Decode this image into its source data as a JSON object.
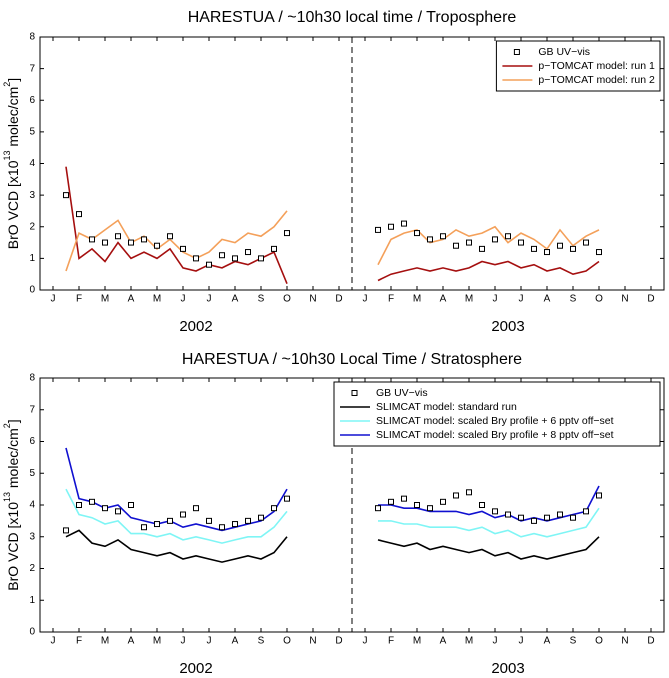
{
  "chart_data": [
    {
      "type": "line",
      "title": "HARESTUA / ~10h30 local time / Troposphere",
      "ylabel_parts": [
        "BrO VCD [x10",
        "13",
        " molec/cm",
        "2",
        "]"
      ],
      "xlim": [
        0,
        24
      ],
      "ylim": [
        0,
        8
      ],
      "yticks": [
        0,
        1,
        2,
        3,
        4,
        5,
        6,
        7,
        8
      ],
      "xticks": [
        {
          "value": 0.5,
          "label": "J"
        },
        {
          "value": 1.5,
          "label": "F"
        },
        {
          "value": 2.5,
          "label": "M"
        },
        {
          "value": 3.5,
          "label": "A"
        },
        {
          "value": 4.5,
          "label": "M"
        },
        {
          "value": 5.5,
          "label": "J"
        },
        {
          "value": 6.5,
          "label": "J"
        },
        {
          "value": 7.5,
          "label": "A"
        },
        {
          "value": 8.5,
          "label": "S"
        },
        {
          "value": 9.5,
          "label": "O"
        },
        {
          "value": 10.5,
          "label": "N"
        },
        {
          "value": 11.5,
          "label": "D"
        },
        {
          "value": 12.5,
          "label": "J"
        },
        {
          "value": 13.5,
          "label": "F"
        },
        {
          "value": 14.5,
          "label": "M"
        },
        {
          "value": 15.5,
          "label": "A"
        },
        {
          "value": 16.5,
          "label": "M"
        },
        {
          "value": 17.5,
          "label": "J"
        },
        {
          "value": 18.5,
          "label": "J"
        },
        {
          "value": 19.5,
          "label": "A"
        },
        {
          "value": 20.5,
          "label": "S"
        },
        {
          "value": 21.5,
          "label": "O"
        },
        {
          "value": 22.5,
          "label": "N"
        },
        {
          "value": 23.5,
          "label": "D"
        }
      ],
      "x_group_labels": [
        {
          "value": 6,
          "label": "2002"
        },
        {
          "value": 18,
          "label": "2003"
        }
      ],
      "divider": 12,
      "legend": "upper right",
      "x": [
        1.0,
        1.5,
        2.0,
        2.5,
        3.0,
        3.5,
        4.0,
        4.5,
        5.0,
        5.5,
        6.0,
        6.5,
        7.0,
        7.5,
        8.0,
        8.5,
        9.0,
        9.5,
        11,
        13.0,
        13.5,
        14.0,
        14.5,
        15.0,
        15.5,
        16.0,
        16.5,
        17.0,
        17.5,
        18.0,
        18.5,
        19.0,
        19.5,
        20.0,
        20.5,
        21.0,
        21.5
      ],
      "series": [
        {
          "name": "GB UV−vis",
          "mark": "square",
          "color": "#000000",
          "values": [
            3.0,
            2.4,
            1.6,
            1.5,
            1.7,
            1.5,
            1.6,
            1.4,
            1.7,
            1.3,
            1.0,
            0.8,
            1.1,
            1.0,
            1.2,
            1.0,
            1.3,
            1.8,
            null,
            1.9,
            2.0,
            2.1,
            1.8,
            1.6,
            1.7,
            1.4,
            1.5,
            1.3,
            1.6,
            1.7,
            1.5,
            1.3,
            1.2,
            1.4,
            1.3,
            1.5,
            1.2
          ]
        },
        {
          "name": "p−TOMCAT model: run 1",
          "mark": "line",
          "color": "#a50f0f",
          "values": [
            3.9,
            1.0,
            1.3,
            0.9,
            1.5,
            1.0,
            1.2,
            1.0,
            1.3,
            0.7,
            0.6,
            0.8,
            0.7,
            0.9,
            0.8,
            1.0,
            1.2,
            0.2,
            null,
            0.3,
            0.5,
            0.6,
            0.7,
            0.6,
            0.7,
            0.6,
            0.7,
            0.9,
            0.8,
            0.9,
            0.7,
            0.8,
            0.6,
            0.7,
            0.5,
            0.6,
            0.9
          ]
        },
        {
          "name": "p−TOMCAT model: run 2",
          "mark": "line",
          "color": "#f4a05a",
          "values": [
            0.6,
            1.8,
            1.6,
            1.9,
            2.2,
            1.5,
            1.7,
            1.3,
            1.6,
            1.2,
            1.0,
            1.2,
            1.6,
            1.5,
            1.8,
            1.7,
            2.0,
            2.5,
            null,
            0.8,
            1.6,
            1.8,
            1.9,
            1.5,
            1.6,
            1.9,
            1.7,
            1.8,
            2.0,
            1.5,
            1.8,
            1.6,
            1.3,
            1.9,
            1.4,
            1.7,
            1.9
          ]
        }
      ]
    },
    {
      "type": "line",
      "title": "HARESTUA / ~10h30 Local Time / Stratosphere",
      "ylabel_parts": [
        "BrO VCD [x10",
        "13",
        " molec/cm",
        "2",
        "]"
      ],
      "xlim": [
        0,
        24
      ],
      "ylim": [
        0,
        8
      ],
      "yticks": [
        0,
        1,
        2,
        3,
        4,
        5,
        6,
        7,
        8
      ],
      "xticks": [
        {
          "value": 0.5,
          "label": "J"
        },
        {
          "value": 1.5,
          "label": "F"
        },
        {
          "value": 2.5,
          "label": "M"
        },
        {
          "value": 3.5,
          "label": "A"
        },
        {
          "value": 4.5,
          "label": "M"
        },
        {
          "value": 5.5,
          "label": "J"
        },
        {
          "value": 6.5,
          "label": "J"
        },
        {
          "value": 7.5,
          "label": "A"
        },
        {
          "value": 8.5,
          "label": "S"
        },
        {
          "value": 9.5,
          "label": "O"
        },
        {
          "value": 10.5,
          "label": "N"
        },
        {
          "value": 11.5,
          "label": "D"
        },
        {
          "value": 12.5,
          "label": "J"
        },
        {
          "value": 13.5,
          "label": "F"
        },
        {
          "value": 14.5,
          "label": "M"
        },
        {
          "value": 15.5,
          "label": "A"
        },
        {
          "value": 16.5,
          "label": "M"
        },
        {
          "value": 17.5,
          "label": "J"
        },
        {
          "value": 18.5,
          "label": "J"
        },
        {
          "value": 19.5,
          "label": "A"
        },
        {
          "value": 20.5,
          "label": "S"
        },
        {
          "value": 21.5,
          "label": "O"
        },
        {
          "value": 22.5,
          "label": "N"
        },
        {
          "value": 23.5,
          "label": "D"
        }
      ],
      "x_group_labels": [
        {
          "value": 6,
          "label": "2002"
        },
        {
          "value": 18,
          "label": "2003"
        }
      ],
      "divider": 12,
      "legend": "upper right",
      "x": [
        1.0,
        1.5,
        2.0,
        2.5,
        3.0,
        3.5,
        4.0,
        4.5,
        5.0,
        5.5,
        6.0,
        6.5,
        7.0,
        7.5,
        8.0,
        8.5,
        9.0,
        9.5,
        11,
        13.0,
        13.5,
        14.0,
        14.5,
        15.0,
        15.5,
        16.0,
        16.5,
        17.0,
        17.5,
        18.0,
        18.5,
        19.0,
        19.5,
        20.0,
        20.5,
        21.0,
        21.5
      ],
      "series": [
        {
          "name": "GB UV−vis",
          "mark": "square",
          "color": "#000000",
          "values": [
            3.2,
            4.0,
            4.1,
            3.9,
            3.8,
            4.0,
            3.3,
            3.4,
            3.5,
            3.7,
            3.9,
            3.5,
            3.3,
            3.4,
            3.5,
            3.6,
            3.9,
            4.2,
            null,
            3.9,
            4.1,
            4.2,
            4.0,
            3.9,
            4.1,
            4.3,
            4.4,
            4.0,
            3.8,
            3.7,
            3.6,
            3.5,
            3.6,
            3.7,
            3.6,
            3.8,
            4.3
          ]
        },
        {
          "name": "SLIMCAT model: standard run",
          "mark": "line",
          "color": "#000000",
          "values": [
            3.0,
            3.2,
            2.8,
            2.7,
            2.9,
            2.6,
            2.5,
            2.4,
            2.5,
            2.3,
            2.4,
            2.3,
            2.2,
            2.3,
            2.4,
            2.3,
            2.5,
            3.0,
            null,
            2.9,
            2.8,
            2.7,
            2.8,
            2.6,
            2.7,
            2.6,
            2.5,
            2.6,
            2.4,
            2.5,
            2.3,
            2.4,
            2.3,
            2.4,
            2.5,
            2.6,
            3.0
          ]
        },
        {
          "name": "SLIMCAT model: scaled Bry profile + 6 pptv off−set",
          "mark": "line",
          "color": "#7ff5f5",
          "values": [
            4.5,
            3.7,
            3.6,
            3.4,
            3.5,
            3.1,
            3.1,
            3.0,
            3.1,
            2.9,
            3.0,
            2.9,
            2.8,
            2.9,
            3.0,
            3.0,
            3.3,
            3.8,
            null,
            3.5,
            3.5,
            3.4,
            3.4,
            3.3,
            3.3,
            3.3,
            3.2,
            3.3,
            3.1,
            3.2,
            3.0,
            3.1,
            3.0,
            3.1,
            3.2,
            3.3,
            3.9
          ]
        },
        {
          "name": "SLIMCAT model: scaled Bry profile + 8 pptv off−set",
          "mark": "line",
          "color": "#1010d0",
          "values": [
            5.8,
            4.2,
            4.1,
            3.9,
            4.0,
            3.6,
            3.5,
            3.4,
            3.5,
            3.3,
            3.4,
            3.3,
            3.2,
            3.3,
            3.4,
            3.5,
            3.8,
            4.5,
            null,
            4.0,
            4.0,
            3.9,
            3.9,
            3.8,
            3.8,
            3.8,
            3.7,
            3.8,
            3.6,
            3.7,
            3.5,
            3.6,
            3.5,
            3.6,
            3.7,
            3.8,
            4.6
          ]
        }
      ]
    }
  ]
}
